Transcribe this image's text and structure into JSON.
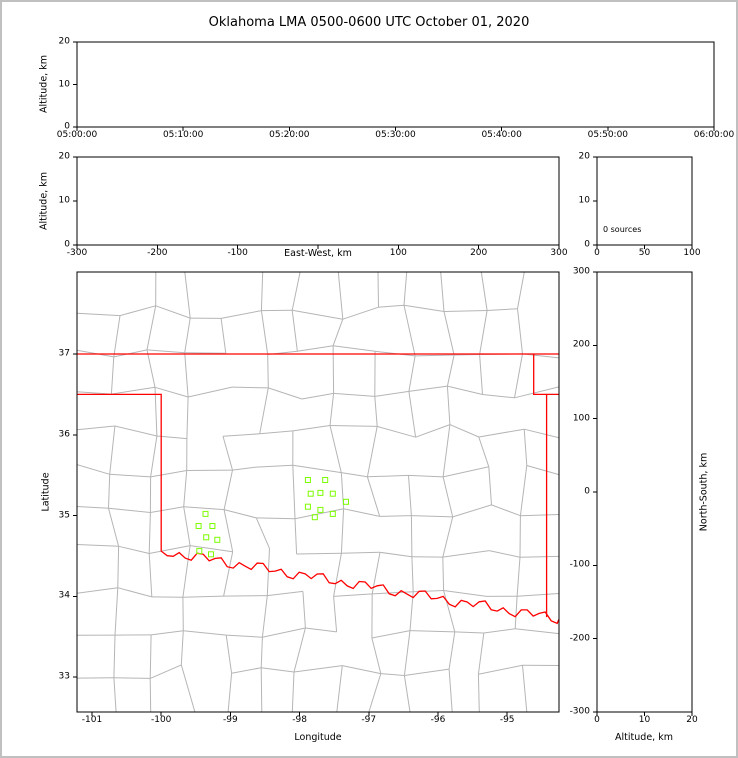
{
  "title": "Oklahoma LMA 0500-0600 UTC October 01, 2020",
  "colors": {
    "frame_border": "#c0c0c0",
    "panel_border": "#000000",
    "county_line": "#b5b5b5",
    "state_border": "#ff0000",
    "source_marker": "#7cfc00",
    "background": "#ffffff",
    "text": "#000000"
  },
  "panels": {
    "time_height": {
      "ylabel": "Altitude, km",
      "yticks": [
        "0",
        "10",
        "20"
      ],
      "xticks": [
        "05:00:00",
        "05:10:00",
        "05:20:00",
        "05:30:00",
        "05:40:00",
        "05:50:00",
        "06:00:00"
      ],
      "ylim": [
        0,
        20
      ]
    },
    "ew_height": {
      "ylabel": "Altitude, km",
      "xlabel": "East-West, km",
      "yticks": [
        "0",
        "10",
        "20"
      ],
      "xticks": [
        "-300",
        "-200",
        "-100",
        "",
        "100",
        "200",
        "300"
      ],
      "xlim": [
        -300,
        300
      ],
      "ylim": [
        0,
        20
      ]
    },
    "alt_histogram": {
      "yticks": [
        "0",
        "10",
        "20"
      ],
      "xticks": [
        "0",
        "50",
        "100"
      ],
      "annotation": "0 sources",
      "xlim": [
        0,
        100
      ],
      "ylim": [
        0,
        20
      ]
    },
    "map": {
      "ylabel": "Latitude",
      "xlabel": "Longitude",
      "yticks": [
        "33",
        "34",
        "35",
        "36",
        "37"
      ],
      "xticks": [
        "-101",
        "-100",
        "-99",
        "-98",
        "-97",
        "-96",
        "-95"
      ],
      "xlim": [
        -101.217,
        -94.251
      ],
      "ylim": [
        32.567,
        38.016
      ]
    },
    "ns_height": {
      "ylabel": "North-South, km",
      "xlabel": "Altitude, km",
      "yticks": [
        "300",
        "200",
        "100",
        "0",
        "-100",
        "-200",
        "-300"
      ],
      "xticks": [
        "0",
        "10",
        "20"
      ],
      "xlim": [
        0,
        20
      ],
      "ylim": [
        -300,
        300
      ]
    }
  },
  "chart_data": [
    {
      "type": "scatter",
      "name": "time-height",
      "ylabel": "Altitude, km",
      "x_range": [
        "05:00:00",
        "06:00:00"
      ],
      "ylim": [
        0,
        20
      ],
      "points": []
    },
    {
      "type": "scatter",
      "name": "east-west-height",
      "xlabel": "East-West, km",
      "ylabel": "Altitude, km",
      "xlim": [
        -300,
        300
      ],
      "ylim": [
        0,
        20
      ],
      "points": []
    },
    {
      "type": "histogram",
      "name": "altitude-source-count",
      "annotation": "0 sources",
      "xlim": [
        0,
        100
      ],
      "ylim": [
        0,
        20
      ],
      "values": []
    },
    {
      "type": "scatter",
      "name": "map-sources",
      "xlabel": "Longitude",
      "ylabel": "Latitude",
      "xlim": [
        -101.217,
        -94.251
      ],
      "ylim": [
        32.567,
        38.016
      ],
      "marker": "open-square",
      "color": "#7cfc00",
      "points": [
        [
          -97.88,
          35.44
        ],
        [
          -97.63,
          35.44
        ],
        [
          -97.84,
          35.27
        ],
        [
          -97.7,
          35.28
        ],
        [
          -97.52,
          35.27
        ],
        [
          -97.88,
          35.11
        ],
        [
          -97.7,
          35.07
        ],
        [
          -97.78,
          34.98
        ],
        [
          -97.52,
          35.02
        ],
        [
          -97.33,
          35.17
        ],
        [
          -99.36,
          35.02
        ],
        [
          -99.46,
          34.87
        ],
        [
          -99.26,
          34.87
        ],
        [
          -99.35,
          34.73
        ],
        [
          -99.19,
          34.7
        ],
        [
          -99.45,
          34.56
        ],
        [
          -99.28,
          34.52
        ]
      ]
    },
    {
      "type": "scatter",
      "name": "north-south-height",
      "xlabel": "Altitude, km",
      "ylabel": "North-South, km",
      "xlim": [
        0,
        20
      ],
      "ylim": [
        -300,
        300
      ],
      "points": []
    }
  ]
}
